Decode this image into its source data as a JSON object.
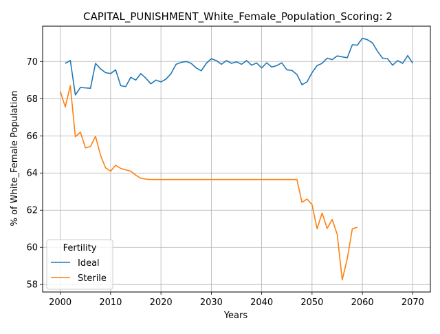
{
  "chart_data": {
    "type": "line",
    "title": "CAPITAL_PUNISHMENT_White_Female_Population_Scoring: 2",
    "xlabel": "Years",
    "ylabel": "% of White_Female Population",
    "xlim": [
      1996.5,
      2073.5
    ],
    "ylim": [
      57.6,
      71.9
    ],
    "xticks": [
      2000,
      2010,
      2020,
      2030,
      2040,
      2050,
      2060,
      2070
    ],
    "yticks": [
      58,
      60,
      62,
      64,
      66,
      68,
      70
    ],
    "grid": true,
    "legend": {
      "title": "Fertility",
      "placement": "bottom-left"
    },
    "series": [
      {
        "name": "Ideal",
        "color": "#1f77b4",
        "x": [
          2001,
          2002,
          2003,
          2004,
          2005,
          2006,
          2007,
          2008,
          2009,
          2010,
          2011,
          2012,
          2013,
          2014,
          2015,
          2016,
          2017,
          2018,
          2019,
          2020,
          2021,
          2022,
          2023,
          2024,
          2025,
          2026,
          2027,
          2028,
          2029,
          2030,
          2031,
          2032,
          2033,
          2034,
          2035,
          2036,
          2037,
          2038,
          2039,
          2040,
          2041,
          2042,
          2043,
          2044,
          2045,
          2046,
          2047,
          2048,
          2049,
          2050,
          2051,
          2052,
          2053,
          2054,
          2055,
          2056,
          2057,
          2058,
          2059,
          2060,
          2061,
          2062,
          2063,
          2064,
          2065,
          2066,
          2067,
          2068,
          2069,
          2070
        ],
        "y": [
          69.9,
          70.05,
          68.2,
          68.6,
          68.58,
          68.56,
          69.9,
          69.6,
          69.4,
          69.35,
          69.55,
          68.7,
          68.65,
          69.15,
          69.0,
          69.35,
          69.1,
          68.8,
          69.0,
          68.9,
          69.05,
          69.35,
          69.85,
          69.95,
          70.0,
          69.9,
          69.65,
          69.5,
          69.9,
          70.15,
          70.05,
          69.85,
          70.05,
          69.9,
          69.98,
          69.85,
          70.05,
          69.8,
          69.92,
          69.65,
          69.93,
          69.7,
          69.78,
          69.93,
          69.55,
          69.52,
          69.3,
          68.75,
          68.9,
          69.4,
          69.78,
          69.9,
          70.18,
          70.1,
          70.3,
          70.25,
          70.2,
          70.9,
          70.88,
          71.25,
          71.17,
          71.0,
          70.55,
          70.18,
          70.15,
          69.8,
          70.05,
          69.9,
          70.32,
          69.9
        ]
      },
      {
        "name": "Sterile",
        "color": "#ff7f0e",
        "x": [
          2000,
          2001,
          2002,
          2003,
          2004,
          2005,
          2006,
          2007,
          2008,
          2009,
          2010,
          2011,
          2012,
          2013,
          2014,
          2015,
          2016,
          2017,
          2018,
          2019,
          2020,
          2021,
          2022,
          2023,
          2024,
          2025,
          2026,
          2027,
          2028,
          2029,
          2030,
          2031,
          2032,
          2033,
          2034,
          2035,
          2036,
          2037,
          2038,
          2039,
          2040,
          2041,
          2042,
          2043,
          2044,
          2045,
          2046,
          2047,
          2048,
          2049,
          2050,
          2051,
          2052,
          2053,
          2054,
          2055,
          2056,
          2057,
          2058,
          2059
        ],
        "y": [
          68.4,
          67.55,
          68.7,
          65.95,
          66.2,
          65.35,
          65.42,
          65.98,
          64.95,
          64.28,
          64.1,
          64.42,
          64.25,
          64.17,
          64.1,
          63.88,
          63.72,
          63.67,
          63.65,
          63.65,
          63.65,
          63.65,
          63.65,
          63.65,
          63.65,
          63.65,
          63.65,
          63.65,
          63.65,
          63.65,
          63.65,
          63.65,
          63.65,
          63.65,
          63.65,
          63.65,
          63.65,
          63.65,
          63.65,
          63.65,
          63.65,
          63.65,
          63.65,
          63.65,
          63.65,
          63.65,
          63.65,
          63.65,
          62.42,
          62.6,
          62.3,
          61.0,
          61.85,
          61.02,
          61.5,
          60.7,
          58.25,
          59.4,
          61.0,
          61.08
        ]
      }
    ]
  }
}
